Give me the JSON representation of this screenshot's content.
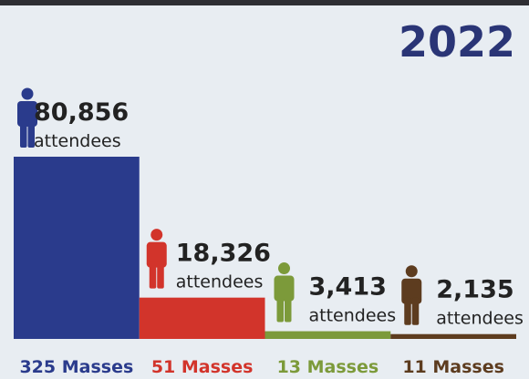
{
  "chart_data": {
    "type": "bar",
    "title": "2022",
    "categories": [
      "325 Masses",
      "51 Masses",
      "13 Masses",
      "11 Masses"
    ],
    "values": [
      80856,
      18326,
      3413,
      2135
    ],
    "value_labels": [
      "80,856",
      "18,326",
      "3,413",
      "2,135"
    ],
    "unit_label": "attendees",
    "colors": [
      "#2a3b8c",
      "#d2342b",
      "#7c9a3a",
      "#5d3c1f"
    ]
  }
}
